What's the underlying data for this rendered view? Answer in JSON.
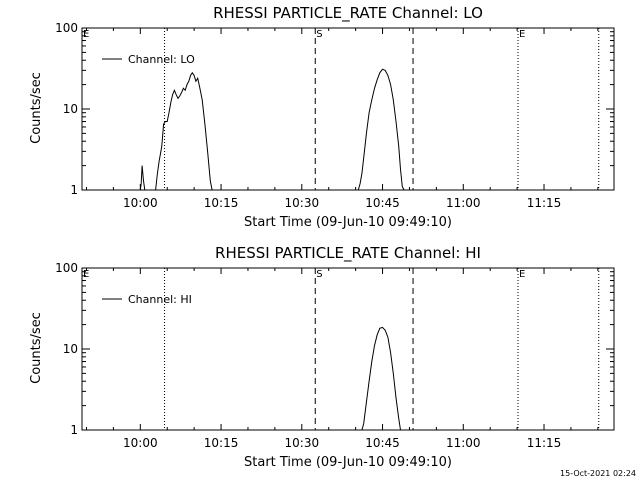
{
  "footer_timestamp": "15-Oct-2021 02:24",
  "chart_data": [
    {
      "type": "line",
      "title": "RHESSI PARTICLE_RATE Channel: LO",
      "xlabel": "Start Time (09-Jun-10 09:49:10)",
      "ylabel": "Counts/sec",
      "yscale": "log",
      "xlim": [
        "09:49:10",
        "11:28:00"
      ],
      "ylim": [
        1,
        100
      ],
      "x_ticks": [
        "10:00",
        "10:15",
        "10:30",
        "10:45",
        "11:00",
        "11:15"
      ],
      "y_ticks": [
        "1",
        "10",
        "100"
      ],
      "legend": {
        "position": "top-left",
        "entries": [
          "Channel: LO"
        ]
      },
      "markers": [
        {
          "time": "09:49:10",
          "label": "E",
          "style": "none"
        },
        {
          "time": "10:04:30",
          "label": "",
          "style": "dotted"
        },
        {
          "time": "10:32:30",
          "label": "S",
          "style": "dashed"
        },
        {
          "time": "10:50:40",
          "label": "",
          "style": "dashed"
        },
        {
          "time": "11:10:10",
          "label": "E",
          "style": "dotted"
        },
        {
          "time": "11:25:10",
          "label": "",
          "style": "dotted"
        }
      ],
      "series": [
        {
          "name": "Channel: LO",
          "segments": [
            [
              [
                "10:00:00",
                0.8
              ],
              [
                "10:00:10",
                1.2
              ],
              [
                "10:00:20",
                2.0
              ],
              [
                "10:00:35",
                1.3
              ],
              [
                "10:00:50",
                0.8
              ]
            ],
            [
              [
                "10:02:50",
                0.8
              ],
              [
                "10:03:10",
                1.6
              ],
              [
                "10:03:30",
                2.3
              ],
              [
                "10:03:50",
                3.0
              ],
              [
                "10:04:00",
                3.5
              ],
              [
                "10:04:20",
                6.5
              ],
              [
                "10:04:40",
                7.0
              ],
              [
                "10:05:00",
                7.0
              ],
              [
                "10:05:20",
                9.0
              ],
              [
                "10:05:40",
                12.0
              ],
              [
                "10:06:00",
                15.0
              ],
              [
                "10:06:20",
                17.0
              ],
              [
                "10:06:40",
                15.0
              ],
              [
                "10:07:00",
                13.5
              ],
              [
                "10:07:20",
                14.5
              ],
              [
                "10:07:40",
                16.0
              ],
              [
                "10:08:00",
                18.0
              ],
              [
                "10:08:20",
                17.0
              ],
              [
                "10:08:40",
                20.0
              ],
              [
                "10:09:00",
                22.0
              ],
              [
                "10:09:20",
                26.0
              ],
              [
                "10:09:40",
                28.0
              ],
              [
                "10:10:00",
                26.0
              ],
              [
                "10:10:20",
                22.0
              ],
              [
                "10:10:40",
                24.0
              ],
              [
                "10:11:00",
                19.0
              ],
              [
                "10:11:30",
                13.0
              ],
              [
                "10:12:00",
                6.5
              ],
              [
                "10:12:30",
                3.0
              ],
              [
                "10:13:00",
                1.3
              ],
              [
                "10:13:20",
                0.8
              ]
            ],
            [
              [
                "10:40:30",
                0.8
              ],
              [
                "10:40:50",
                1.2
              ],
              [
                "10:41:10",
                1.6
              ],
              [
                "10:41:30",
                2.5
              ],
              [
                "10:42:00",
                5.0
              ],
              [
                "10:42:30",
                9.0
              ],
              [
                "10:43:00",
                13.0
              ],
              [
                "10:43:30",
                18.0
              ],
              [
                "10:44:00",
                23.0
              ],
              [
                "10:44:30",
                28.0
              ],
              [
                "10:45:00",
                31.0
              ],
              [
                "10:45:30",
                30.0
              ],
              [
                "10:46:00",
                26.0
              ],
              [
                "10:46:30",
                20.0
              ],
              [
                "10:47:00",
                13.0
              ],
              [
                "10:47:30",
                7.0
              ],
              [
                "10:48:00",
                3.5
              ],
              [
                "10:48:20",
                1.8
              ],
              [
                "10:48:40",
                1.1
              ],
              [
                "10:49:00",
                0.8
              ]
            ]
          ]
        }
      ]
    },
    {
      "type": "line",
      "title": "RHESSI PARTICLE_RATE Channel: HI",
      "xlabel": "Start Time (09-Jun-10 09:49:10)",
      "ylabel": "Counts/sec",
      "yscale": "log",
      "xlim": [
        "09:49:10",
        "11:28:00"
      ],
      "ylim": [
        1,
        100
      ],
      "x_ticks": [
        "10:00",
        "10:15",
        "10:30",
        "10:45",
        "11:00",
        "11:15"
      ],
      "y_ticks": [
        "1",
        "10",
        "100"
      ],
      "legend": {
        "position": "top-left",
        "entries": [
          "Channel: HI"
        ]
      },
      "markers": [
        {
          "time": "09:49:10",
          "label": "E",
          "style": "none"
        },
        {
          "time": "10:04:30",
          "label": "",
          "style": "dotted"
        },
        {
          "time": "10:32:30",
          "label": "S",
          "style": "dashed"
        },
        {
          "time": "10:50:40",
          "label": "",
          "style": "dashed"
        },
        {
          "time": "11:10:10",
          "label": "E",
          "style": "dotted"
        },
        {
          "time": "11:25:10",
          "label": "",
          "style": "dotted"
        }
      ],
      "series": [
        {
          "name": "Channel: HI",
          "segments": [
            [
              [
                "10:41:10",
                0.8
              ],
              [
                "10:41:30",
                1.2
              ],
              [
                "10:42:00",
                2.2
              ],
              [
                "10:42:30",
                4.0
              ],
              [
                "10:43:00",
                7.0
              ],
              [
                "10:43:30",
                11.0
              ],
              [
                "10:44:00",
                15.0
              ],
              [
                "10:44:30",
                18.0
              ],
              [
                "10:45:00",
                18.5
              ],
              [
                "10:45:30",
                17.0
              ],
              [
                "10:46:00",
                14.0
              ],
              [
                "10:46:30",
                9.0
              ],
              [
                "10:47:00",
                5.0
              ],
              [
                "10:47:30",
                2.5
              ],
              [
                "10:48:00",
                1.4
              ],
              [
                "10:48:20",
                0.8
              ]
            ]
          ]
        }
      ]
    }
  ]
}
